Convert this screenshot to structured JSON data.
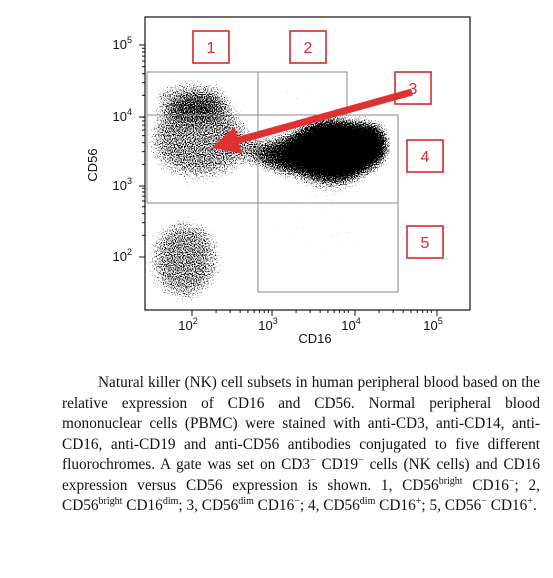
{
  "figure": {
    "y_axis_label": "CD56",
    "x_axis_label": "CD16",
    "x_ticks": [
      {
        "base": "10",
        "exp": "2"
      },
      {
        "base": "10",
        "exp": "3"
      },
      {
        "base": "10",
        "exp": "4"
      },
      {
        "base": "10",
        "exp": "5"
      }
    ],
    "y_ticks": [
      {
        "base": "10",
        "exp": "5"
      },
      {
        "base": "10",
        "exp": "4"
      },
      {
        "base": "10",
        "exp": "3"
      },
      {
        "base": "10",
        "exp": "2"
      }
    ],
    "gate_labels": [
      "1",
      "2",
      "3",
      "4",
      "5"
    ]
  },
  "caption": [
    {
      "text": "Natural killer (NK) cell subsets in human peripheral blood based on the relative expression of CD16 and CD56. Normal peripheral blood mononuclear cells (PBMC) were stained with anti-CD3, anti-CD14, anti-CD16, anti-CD19 and anti-CD56 antibodies conjugated to five different fluorochromes. A gate was set on CD3"
    },
    {
      "sup": "−"
    },
    {
      "text": " CD19"
    },
    {
      "sup": "−"
    },
    {
      "text": " cells (NK cells) and CD16 expression versus CD56 expression is shown. 1, CD56"
    },
    {
      "sup": "bright"
    },
    {
      "text": " CD16"
    },
    {
      "sup": "−"
    },
    {
      "text": "; 2, CD56"
    },
    {
      "sup": "bright"
    },
    {
      "text": " CD16"
    },
    {
      "sup": "dim"
    },
    {
      "text": "; 3, CD56"
    },
    {
      "sup": "dim"
    },
    {
      "text": " CD16"
    },
    {
      "sup": "−"
    },
    {
      "text": "; 4, CD56"
    },
    {
      "sup": "dim"
    },
    {
      "text": " CD16"
    },
    {
      "sup": "+"
    },
    {
      "text": "; 5, CD56"
    },
    {
      "sup": "−"
    },
    {
      "text": " CD16"
    },
    {
      "sup": "+"
    },
    {
      "text": "."
    }
  ]
}
